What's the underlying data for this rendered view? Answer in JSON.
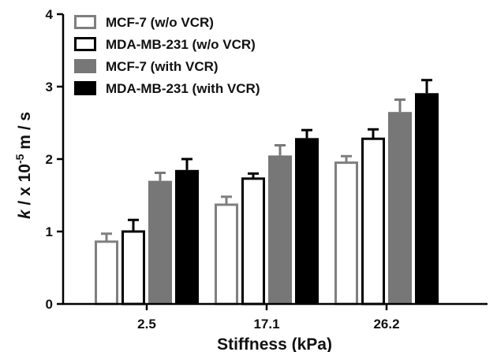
{
  "chart_data": {
    "type": "bar",
    "xlabel": "Stiffness  (kPa)",
    "ylabel_prefix": "k",
    "ylabel_rest": " / x 10",
    "ylabel_exp": "-5",
    "ylabel_unit": " m / s",
    "ylim": [
      0,
      4
    ],
    "yticks": [
      "0",
      "1",
      "2",
      "3",
      "4"
    ],
    "categories": [
      "2.5",
      "17.1",
      "26.2"
    ],
    "legend_position": "top-left",
    "grid": false,
    "series": [
      {
        "name": "MCF-7 (w/o VCR)",
        "style": "outline",
        "color": "#7f7f7f",
        "values": [
          0.86,
          1.37,
          1.95
        ],
        "errors": [
          0.11,
          0.11,
          0.09
        ]
      },
      {
        "name": "MDA-MB-231 (w/o VCR)",
        "style": "outline",
        "color": "#000000",
        "values": [
          1.0,
          1.73,
          2.28
        ],
        "errors": [
          0.16,
          0.07,
          0.13
        ]
      },
      {
        "name": "MCF-7 (with VCR)",
        "style": "filled",
        "color": "#777777",
        "values": [
          1.7,
          2.05,
          2.65
        ],
        "errors": [
          0.11,
          0.14,
          0.17
        ]
      },
      {
        "name": "MDA-MB-231 (with VCR)",
        "style": "filled",
        "color": "#000000",
        "values": [
          1.85,
          2.29,
          2.91
        ],
        "errors": [
          0.15,
          0.11,
          0.18
        ]
      }
    ]
  }
}
